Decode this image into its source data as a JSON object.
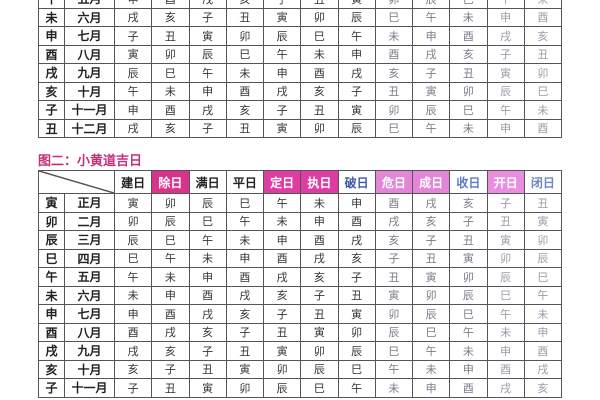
{
  "table1": {
    "rows": [
      {
        "branch": "午",
        "month": "五月",
        "cells": [
          "申",
          "酉",
          "戌",
          "亥",
          "子",
          "丑",
          "寅",
          "卯",
          "辰",
          "巳",
          "午",
          "未"
        ]
      },
      {
        "branch": "未",
        "month": "六月",
        "cells": [
          "戌",
          "亥",
          "子",
          "丑",
          "寅",
          "卯",
          "辰",
          "巳",
          "午",
          "未",
          "申",
          "酉"
        ]
      },
      {
        "branch": "申",
        "month": "七月",
        "cells": [
          "子",
          "丑",
          "寅",
          "卯",
          "辰",
          "巳",
          "午",
          "未",
          "申",
          "酉",
          "戌",
          "亥"
        ]
      },
      {
        "branch": "酉",
        "month": "八月",
        "cells": [
          "寅",
          "卯",
          "辰",
          "巳",
          "午",
          "未",
          "申",
          "酉",
          "戌",
          "亥",
          "子",
          "丑"
        ]
      },
      {
        "branch": "戌",
        "month": "九月",
        "cells": [
          "辰",
          "巳",
          "午",
          "未",
          "申",
          "酉",
          "戌",
          "亥",
          "子",
          "丑",
          "寅",
          "卯"
        ]
      },
      {
        "branch": "亥",
        "month": "十月",
        "cells": [
          "午",
          "未",
          "申",
          "酉",
          "戌",
          "亥",
          "子",
          "丑",
          "寅",
          "卯",
          "辰",
          "巳"
        ]
      },
      {
        "branch": "子",
        "month": "十一月",
        "cells": [
          "申",
          "酉",
          "戌",
          "亥",
          "子",
          "丑",
          "寅",
          "卯",
          "辰",
          "巳",
          "午",
          "未"
        ]
      },
      {
        "branch": "丑",
        "month": "十二月",
        "cells": [
          "戌",
          "亥",
          "子",
          "丑",
          "寅",
          "卯",
          "辰",
          "巳",
          "午",
          "未",
          "申",
          "酉"
        ]
      }
    ]
  },
  "table2": {
    "title": "图二：小黄道吉日",
    "headers": [
      {
        "label": "建日",
        "bg": "#ffffff",
        "color": "#222222"
      },
      {
        "label": "除日",
        "bg": "#d9338c",
        "color": "#ffffff"
      },
      {
        "label": "满日",
        "bg": "#ffffff",
        "color": "#222222"
      },
      {
        "label": "平日",
        "bg": "#ffffff",
        "color": "#222222"
      },
      {
        "label": "定日",
        "bg": "#de3ba3",
        "color": "#ffffff"
      },
      {
        "label": "执日",
        "bg": "#de3ba3",
        "color": "#ffffff"
      },
      {
        "label": "破日",
        "bg": "#ffffff",
        "color": "#3f5aa8"
      },
      {
        "label": "危日",
        "bg": "#e486d8",
        "color": "#ffffff"
      },
      {
        "label": "成日",
        "bg": "#e486d8",
        "color": "#ffffff"
      },
      {
        "label": "收日",
        "bg": "#ffffff",
        "color": "#5b7bc8"
      },
      {
        "label": "开日",
        "bg": "#ea8ee0",
        "color": "#ffffff"
      },
      {
        "label": "闭日",
        "bg": "#ffffff",
        "color": "#6a86c8"
      }
    ],
    "rows": [
      {
        "branch": "寅",
        "month": "正月",
        "cells": [
          "寅",
          "卯",
          "辰",
          "巳",
          "午",
          "未",
          "申",
          "酉",
          "戌",
          "亥",
          "子",
          "丑"
        ]
      },
      {
        "branch": "卯",
        "month": "二月",
        "cells": [
          "卯",
          "辰",
          "巳",
          "午",
          "未",
          "申",
          "酉",
          "戌",
          "亥",
          "子",
          "丑",
          "寅"
        ]
      },
      {
        "branch": "辰",
        "month": "三月",
        "cells": [
          "辰",
          "巳",
          "午",
          "未",
          "申",
          "酉",
          "戌",
          "亥",
          "子",
          "丑",
          "寅",
          "卯"
        ]
      },
      {
        "branch": "巳",
        "month": "四月",
        "cells": [
          "巳",
          "午",
          "未",
          "申",
          "酉",
          "戌",
          "亥",
          "子",
          "丑",
          "寅",
          "卯",
          "辰"
        ]
      },
      {
        "branch": "午",
        "month": "五月",
        "cells": [
          "午",
          "未",
          "申",
          "酉",
          "戌",
          "亥",
          "子",
          "丑",
          "寅",
          "卯",
          "辰",
          "巳"
        ]
      },
      {
        "branch": "未",
        "month": "六月",
        "cells": [
          "未",
          "申",
          "酉",
          "戌",
          "亥",
          "子",
          "丑",
          "寅",
          "卯",
          "辰",
          "巳",
          "午"
        ]
      },
      {
        "branch": "申",
        "month": "七月",
        "cells": [
          "申",
          "酉",
          "戌",
          "亥",
          "子",
          "丑",
          "寅",
          "卯",
          "辰",
          "巳",
          "午",
          "未"
        ]
      },
      {
        "branch": "酉",
        "month": "八月",
        "cells": [
          "酉",
          "戌",
          "亥",
          "子",
          "丑",
          "寅",
          "卯",
          "辰",
          "巳",
          "午",
          "未",
          "申"
        ]
      },
      {
        "branch": "戌",
        "month": "九月",
        "cells": [
          "戌",
          "亥",
          "子",
          "丑",
          "寅",
          "卯",
          "辰",
          "巳",
          "午",
          "未",
          "申",
          "酉"
        ]
      },
      {
        "branch": "亥",
        "month": "十月",
        "cells": [
          "亥",
          "子",
          "丑",
          "寅",
          "卯",
          "辰",
          "巳",
          "午",
          "未",
          "申",
          "酉",
          "戌"
        ]
      },
      {
        "branch": "子",
        "month": "十一月",
        "cells": [
          "子",
          "丑",
          "寅",
          "卯",
          "辰",
          "巳",
          "午",
          "未",
          "申",
          "酉",
          "戌",
          "亥"
        ]
      }
    ]
  }
}
